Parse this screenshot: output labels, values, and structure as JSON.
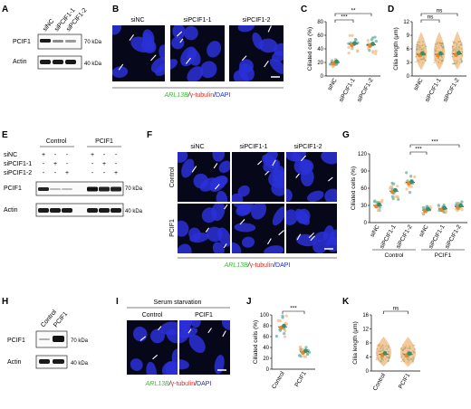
{
  "colors": {
    "nucleus": "#2a30d8",
    "background": "#07071a",
    "cilia": "#ffffff",
    "orange": "#e8862a",
    "green": "#3a8f6b",
    "teal": "#6fb3a8",
    "light_orange": "#f2c08a",
    "arl13b": "#3db83a",
    "gtubulin": "#d8281e",
    "dapi": "#1c2bd6"
  },
  "panels": {
    "A": {
      "letter": "A",
      "lanes": [
        "siNC",
        "siPCIF1-1",
        "siPCIF1-2"
      ],
      "rows": [
        {
          "label": "PCIF1",
          "marker": "70 kDa"
        },
        {
          "label": "Actin",
          "marker": "40 kDa"
        }
      ]
    },
    "B": {
      "letter": "B",
      "images": [
        "siNC",
        "siPCIF1-1",
        "siPCIF1-2"
      ],
      "stain": {
        "a": "ARL13B",
        "b": "γ-tubulin",
        "c": "DAPI"
      }
    },
    "C": {
      "letter": "C",
      "ylabel": "Ciliated cells (%)",
      "yticks": [
        "0",
        "20",
        "40",
        "60",
        "80"
      ],
      "categories": [
        "siNC",
        "siPCIF1-1",
        "siPCIF1-2"
      ],
      "sig": [
        "***",
        "**"
      ]
    },
    "D": {
      "letter": "D",
      "ylabel": "Cilia length (μm)",
      "yticks": [
        "0",
        "3",
        "6",
        "9",
        "12"
      ],
      "categories": [
        "siNC",
        "siPCIF1-1",
        "siPCIF1-2"
      ],
      "sig": [
        "ns",
        "ns"
      ]
    },
    "E": {
      "letter": "E",
      "groups": [
        "Control",
        "PCIF1"
      ],
      "rows": [
        {
          "label": "siNC",
          "signs": [
            "+",
            "-",
            "-",
            "+",
            "-",
            "-"
          ]
        },
        {
          "label": "siPCIF1-1",
          "signs": [
            "-",
            "+",
            "-",
            "-",
            "+",
            "-"
          ]
        },
        {
          "label": "siPCIF1-2",
          "signs": [
            "-",
            "-",
            "+",
            "-",
            "-",
            "+"
          ]
        }
      ],
      "blots": [
        {
          "label": "PCIF1",
          "marker": "70 kDa"
        },
        {
          "label": "Actin",
          "marker": "40 kDa"
        }
      ]
    },
    "F": {
      "letter": "F",
      "cols": [
        "siNC",
        "siPCIF1-1",
        "siPCIF1-2"
      ],
      "rows": [
        "Control",
        "PCIF1"
      ],
      "stain": {
        "a": "ARL13B",
        "b": "γ-tubulin",
        "c": "DAPI"
      }
    },
    "G": {
      "letter": "G",
      "ylabel": "Ciliated cells (%)",
      "yticks": [
        "0",
        "30",
        "60",
        "90",
        "120"
      ],
      "categories": [
        "siNC",
        "siPCIF1-1",
        "siPCIF1-2",
        "siNC",
        "siPCIF1-1",
        "siPCIF1-2"
      ],
      "groups": [
        "Control",
        "PCIF1"
      ],
      "sig": [
        "***",
        "***"
      ]
    },
    "H": {
      "letter": "H",
      "lanes": [
        "Control",
        "PCIF1"
      ],
      "rows": [
        {
          "label": "PCIF1",
          "marker": "70 kDa"
        },
        {
          "label": "Actin",
          "marker": "40 kDa"
        }
      ]
    },
    "I": {
      "letter": "I",
      "title": "Serum starvation",
      "cols": [
        "Control",
        "PCIF1"
      ],
      "stain": {
        "a": "ARL13B",
        "b": "γ-tubulin",
        "c": "DAPI"
      }
    },
    "J": {
      "letter": "J",
      "ylabel": "Ciliated cells (%)",
      "yticks": [
        "0",
        "20",
        "40",
        "60",
        "80",
        "100"
      ],
      "categories": [
        "Control",
        "PCIF1"
      ],
      "sig": [
        "***"
      ]
    },
    "K": {
      "letter": "K",
      "ylabel": "Cilia length (μm)",
      "yticks": [
        "0",
        "4",
        "8",
        "12",
        "16"
      ],
      "categories": [
        "Control",
        "PCIF1"
      ],
      "sig": [
        "ns"
      ]
    }
  },
  "chart_data": [
    {
      "panel": "C",
      "type": "scatter",
      "categories": [
        "siNC",
        "siPCIF1-1",
        "siPCIF1-2"
      ],
      "ylabel": "Ciliated cells (%)",
      "ylim": [
        0,
        80
      ],
      "means": [
        20,
        47,
        46
      ]
    },
    {
      "panel": "D",
      "type": "scatter",
      "categories": [
        "siNC",
        "siPCIF1-1",
        "siPCIF1-2"
      ],
      "ylabel": "Cilia length (μm)",
      "ylim": [
        0,
        12
      ],
      "means": [
        4.8,
        4.8,
        4.9
      ]
    },
    {
      "panel": "G",
      "type": "scatter",
      "categories": [
        "siNC",
        "siPCIF1-1",
        "siPCIF1-2",
        "siNC",
        "siPCIF1-1",
        "siPCIF1-2"
      ],
      "ylabel": "Ciliated cells (%)",
      "ylim": [
        0,
        120
      ],
      "means": [
        30,
        55,
        70,
        22,
        24,
        28
      ]
    },
    {
      "panel": "J",
      "type": "scatter",
      "categories": [
        "Control",
        "PCIF1"
      ],
      "ylabel": "Ciliated cells (%)",
      "ylim": [
        0,
        100
      ],
      "means": [
        78,
        32
      ]
    },
    {
      "panel": "K",
      "type": "scatter",
      "categories": [
        "Control",
        "PCIF1"
      ],
      "ylabel": "Cilia length (μm)",
      "ylim": [
        0,
        16
      ],
      "means": [
        4.8,
        4.7
      ]
    }
  ]
}
